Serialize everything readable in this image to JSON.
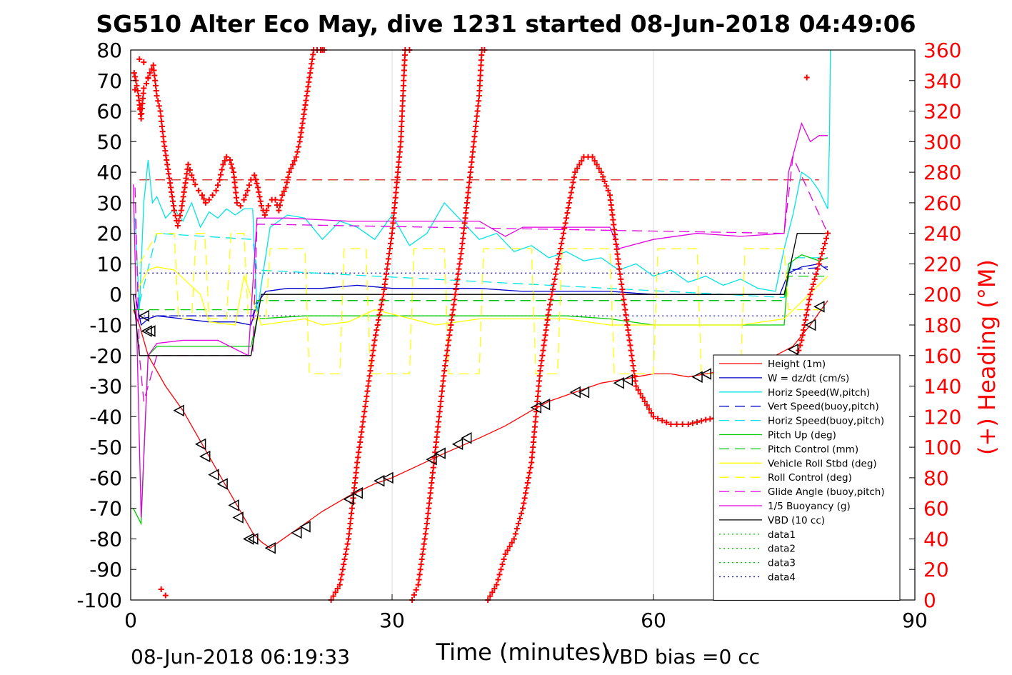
{
  "chart_data": {
    "type": "line",
    "title": "SG510 Alter Eco May, dive 1231 started 08-Jun-2018 04:49:06",
    "xlabel": "Time (minutes)",
    "ylabel_right": "(+) Heading (°M)",
    "footer_left": "08-Jun-2018 06:19:33",
    "footer_right": "VBD bias =0 cc",
    "xlim": [
      0,
      90
    ],
    "ylim": [
      -100,
      80
    ],
    "ylim_right": [
      0,
      360
    ],
    "xticks": [
      "0",
      "30",
      "60",
      "90"
    ],
    "yticks": [
      "80",
      "70",
      "60",
      "50",
      "40",
      "30",
      "20",
      "10",
      "0",
      "-10",
      "-20",
      "-30",
      "-40",
      "-50",
      "-60",
      "-70",
      "-80",
      "-90",
      "-100"
    ],
    "yticks_right": [
      "360",
      "340",
      "320",
      "300",
      "280",
      "260",
      "240",
      "220",
      "200",
      "180",
      "160",
      "140",
      "120",
      "100",
      "80",
      "60",
      "40",
      "20",
      "0"
    ],
    "grid": true,
    "legend_position": "lower-right",
    "colors": {
      "height": "#ff0000",
      "w": "#0000cc",
      "horiz": "#00e5e5",
      "vert_buoy": "#0000cc",
      "horiz_buoy": "#00e5e5",
      "pitch": "#00cc00",
      "pitch_ctrl": "#00cc00",
      "roll": "#ffff00",
      "roll_ctrl": "#ffff00",
      "glide": "#e000e0",
      "buoy": "#e000e0",
      "vbd": "#000000",
      "heading": "#ff0000",
      "data4": "#0000cc"
    },
    "series": [
      {
        "name": "Height (1m)",
        "key": "height",
        "style": "solid",
        "x": [
          0.3,
          1,
          2,
          4,
          6,
          8,
          10,
          12,
          14,
          15,
          16,
          18,
          20,
          22,
          25,
          28,
          30,
          33,
          36,
          40,
          43,
          46,
          48,
          50,
          52,
          54,
          56,
          58,
          60,
          62,
          64,
          66,
          68,
          70,
          72,
          74,
          76,
          78,
          79,
          80
        ],
        "y": [
          -5,
          -10,
          -20,
          -30,
          -38,
          -48,
          -58,
          -68,
          -78,
          -81,
          -83,
          -79,
          -75,
          -71,
          -66,
          -62,
          -60,
          -56,
          -52,
          -47,
          -43,
          -38,
          -35,
          -33,
          -31,
          -29,
          -28,
          -27,
          -26,
          -26,
          -27,
          -26,
          -25,
          -24,
          -22,
          -20,
          -17,
          -10,
          -6,
          -2
        ]
      },
      {
        "name": "W = dz/dt (cm/s)",
        "key": "w",
        "style": "solid",
        "x": [
          0.5,
          1.2,
          2,
          3,
          6,
          9,
          12,
          13.8,
          14.5,
          15.5,
          18,
          22,
          26,
          30,
          35,
          40,
          45,
          50,
          55,
          60,
          65,
          70,
          74.5,
          75.5,
          77,
          79,
          80
        ],
        "y": [
          0,
          -10,
          -8,
          -7,
          -8,
          -9,
          -9,
          -10,
          -3,
          1,
          2,
          2,
          3,
          2,
          2,
          2,
          1,
          1,
          1,
          0,
          0,
          0,
          0,
          7,
          9,
          10,
          8
        ]
      },
      {
        "name": "Horiz Speed(W,pitch)",
        "key": "horiz",
        "style": "solid",
        "x": [
          0.5,
          1,
          1.5,
          2,
          2.5,
          3,
          4,
          5,
          6,
          7,
          8,
          9,
          10,
          11,
          12,
          13,
          14,
          14.5,
          16,
          18,
          20,
          22,
          24,
          26,
          28,
          30,
          32,
          34,
          36,
          38,
          40,
          42,
          44,
          46,
          48,
          50,
          52,
          54,
          56,
          58,
          60,
          62,
          64,
          66,
          68,
          70,
          72,
          74,
          75,
          76,
          77,
          78,
          79,
          80,
          80.2,
          80.3
        ],
        "y": [
          25,
          -5,
          30,
          44,
          30,
          32,
          25,
          28,
          24,
          30,
          22,
          27,
          25,
          28,
          26,
          28,
          28,
          -6,
          22,
          26,
          25,
          18,
          24,
          22,
          18,
          26,
          16,
          20,
          30,
          24,
          18,
          20,
          14,
          16,
          12,
          14,
          11,
          12,
          8,
          10,
          6,
          8,
          4,
          6,
          3,
          5,
          2,
          1,
          15,
          26,
          40,
          38,
          34,
          28,
          50,
          80
        ]
      },
      {
        "name": "Vert Speed(buoy,pitch)",
        "key": "vert_buoy",
        "style": "dash",
        "x": [
          1,
          3,
          14,
          14.5,
          75,
          75.5,
          80
        ],
        "y": [
          -8,
          -7,
          -7,
          -2,
          -2,
          8,
          9
        ]
      },
      {
        "name": "Horiz Speed(buoy,pitch)",
        "key": "horiz_buoy",
        "style": "dash",
        "x": [
          1,
          3,
          14,
          14.5,
          75,
          76,
          80
        ],
        "y": [
          -3,
          20,
          18,
          8,
          -1,
          12,
          12
        ]
      },
      {
        "name": "Pitch Up (deg)",
        "key": "pitch",
        "style": "solid",
        "x": [
          0.3,
          1.2,
          2,
          3,
          6,
          10,
          13.8,
          14.5,
          20,
          30,
          40,
          50,
          55,
          60,
          70,
          75,
          75.5,
          77,
          79,
          80
        ],
        "y": [
          -70,
          -75,
          -20,
          -17,
          -17,
          -17,
          -17,
          -8,
          -7,
          -7,
          -7,
          -7,
          -8,
          -10,
          -10,
          -10,
          10,
          13,
          11,
          12
        ]
      },
      {
        "name": "Pitch Control (mm)",
        "key": "pitch_ctrl",
        "style": "dash",
        "x": [
          0.3,
          14,
          14.5,
          75,
          75.5,
          80
        ],
        "y": [
          -5,
          -5,
          -2,
          -2,
          6,
          6
        ]
      },
      {
        "name": "Vehicle Roll Stbd (deg)",
        "key": "roll",
        "style": "solid",
        "x": [
          0.5,
          2,
          3,
          5,
          8,
          9,
          12,
          13,
          15,
          20,
          22,
          25,
          28,
          35,
          40,
          45,
          50,
          55,
          60,
          70,
          75,
          80
        ],
        "y": [
          0,
          8,
          9,
          8,
          0,
          -9,
          -10,
          6,
          -10,
          -8,
          -10,
          -9,
          -5,
          -10,
          -8,
          -8,
          -8,
          -10,
          -10,
          -10,
          -8,
          6
        ]
      },
      {
        "name": "Roll Control (deg)",
        "key": "roll_ctrl",
        "style": "dash",
        "x": [
          1,
          3,
          5,
          5.5,
          7,
          7.5,
          8.5,
          9,
          11,
          11.5,
          13,
          13.5,
          15.5,
          16,
          20,
          20.5,
          24,
          24.5,
          27,
          27.5,
          32,
          32.5,
          36,
          36.5,
          40,
          40.5,
          46,
          46.5,
          49,
          49.5,
          55,
          55.5,
          60,
          60.5,
          65,
          65.5,
          70,
          70.5,
          75,
          75.5,
          80
        ],
        "y": [
          10,
          20,
          20,
          -8,
          -8,
          20,
          20,
          -8,
          -8,
          20,
          20,
          -8,
          -8,
          15,
          15,
          -26,
          -26,
          15,
          15,
          -26,
          -26,
          15,
          15,
          -26,
          -26,
          15,
          15,
          -26,
          -26,
          15,
          15,
          -26,
          -26,
          15,
          15,
          -26,
          -26,
          15,
          15,
          -5,
          -5
        ]
      },
      {
        "name": "Glide Angle (buoy,pitch)",
        "key": "glide",
        "style": "dash",
        "x": [
          0.5,
          1,
          1.5,
          3,
          14,
          14.5,
          75,
          76,
          80
        ],
        "y": [
          35,
          -20,
          -35,
          -20,
          -20,
          23,
          20,
          45,
          20
        ]
      },
      {
        "name": "1/5 Buoyancy (g)",
        "key": "buoy",
        "style": "solid",
        "x": [
          0.3,
          1.2,
          2,
          3,
          6,
          10,
          13.5,
          14.5,
          18,
          25,
          30,
          40,
          43,
          45,
          50,
          55,
          56,
          60,
          65,
          70,
          75,
          75.5,
          77,
          78,
          79,
          80
        ],
        "y": [
          36,
          -73,
          -20,
          -16,
          -15,
          -15,
          -20,
          25,
          25,
          24,
          24,
          24,
          19,
          22,
          22,
          22,
          15,
          18,
          20,
          19,
          20,
          40,
          56,
          50,
          52,
          52
        ]
      },
      {
        "name": "VBD (10 cc)",
        "key": "vbd",
        "style": "solid",
        "x": [
          0.3,
          1,
          2,
          13.8,
          15,
          75,
          76.5,
          80
        ],
        "y": [
          0,
          -20,
          -20,
          -20,
          0,
          0,
          20,
          20
        ]
      },
      {
        "name": "data1",
        "key": "data1",
        "style": "dot",
        "x": [],
        "y": []
      },
      {
        "name": "data2",
        "key": "data2",
        "style": "dot",
        "x": [],
        "y": []
      },
      {
        "name": "data3",
        "key": "data3",
        "style": "dot",
        "x": [],
        "y": []
      },
      {
        "name": "data4",
        "key": "data4",
        "style": "dot",
        "x": [],
        "y": []
      }
    ],
    "reference_lines": [
      {
        "axis": "y",
        "value": 37.5,
        "color": "#cc0000",
        "style": "dash",
        "xrange": [
          1,
          79
        ]
      },
      {
        "axis": "y",
        "value": 7,
        "color": "#0000cc",
        "style": "dot",
        "xrange": [
          1,
          79
        ]
      },
      {
        "axis": "y",
        "value": -7,
        "color": "#0000cc",
        "style": "dot",
        "xrange": [
          1,
          79
        ]
      }
    ],
    "markers_triangle": {
      "x": [
        1.5,
        1.8,
        2.2,
        5.5,
        8,
        8.5,
        9.5,
        10.5,
        11.8,
        12.3,
        13.5,
        14,
        16,
        19,
        20,
        25,
        26,
        28.5,
        29.5,
        34.5,
        35.5,
        37.5,
        38.5,
        46.5,
        47.5,
        51,
        52,
        56,
        57,
        65,
        66,
        76,
        78,
        79
      ],
      "y": [
        -7,
        -12,
        -12,
        -38,
        -49,
        -53,
        -59,
        -62,
        -69,
        -73,
        -80,
        -80,
        -83,
        -78,
        -76,
        -67,
        -65,
        -61,
        -60,
        -54,
        -52,
        -49,
        -47,
        -37,
        -36,
        -32,
        -32,
        -29,
        -28,
        -27,
        -26,
        -18,
        -10,
        -4
      ]
    },
    "heading": {
      "name": "(+) Heading (°M)",
      "x": [
        0.4,
        0.6,
        0.9,
        1.2,
        1.5,
        1.8,
        2.2,
        2.6,
        3,
        3.4,
        3.8,
        4.2,
        4.6,
        5,
        5.4,
        5.8,
        6.2,
        6.6,
        7,
        7.4,
        7.8,
        8.2,
        8.6,
        9,
        9.4,
        9.8,
        10.2,
        10.6,
        11,
        11.4,
        11.8,
        12.2,
        12.6,
        13,
        13.4,
        13.8,
        14.2,
        14.6,
        15,
        15.4,
        15.8,
        16.2,
        16.6,
        17,
        17.4,
        17.8,
        18.2,
        18.6,
        19,
        19.4,
        19.8,
        20.2,
        20.6,
        21,
        21.4,
        21.8,
        22,
        22.2,
        23,
        24,
        25,
        26,
        27,
        28,
        29,
        30,
        31,
        31.5,
        32,
        32.3,
        33,
        34,
        35,
        36,
        37,
        38,
        39,
        40,
        40.3,
        40.6,
        41,
        42,
        43,
        44,
        45,
        46,
        47,
        48,
        49,
        50,
        51,
        52,
        53,
        54,
        55,
        56,
        57,
        58,
        59,
        60,
        62,
        64,
        66,
        68,
        70,
        72,
        74,
        76,
        77,
        78,
        79,
        80
      ],
      "y": [
        345,
        340,
        330,
        315,
        335,
        338,
        345,
        350,
        330,
        320,
        300,
        285,
        270,
        255,
        245,
        255,
        270,
        285,
        278,
        272,
        268,
        265,
        260,
        262,
        265,
        268,
        275,
        285,
        290,
        288,
        280,
        260,
        258,
        262,
        268,
        275,
        278,
        270,
        258,
        252,
        258,
        262,
        262,
        255,
        265,
        270,
        280,
        285,
        290,
        300,
        315,
        330,
        345,
        360,
        360,
        360,
        360,
        360,
        0,
        10,
        40,
        90,
        130,
        170,
        200,
        240,
        300,
        360,
        360,
        0,
        10,
        50,
        100,
        150,
        190,
        230,
        280,
        330,
        360,
        360,
        0,
        10,
        30,
        40,
        60,
        90,
        150,
        190,
        220,
        250,
        280,
        290,
        290,
        280,
        265,
        220,
        180,
        140,
        130,
        120,
        115,
        115,
        118,
        120,
        122,
        125,
        130,
        150,
        170,
        200,
        220,
        240
      ],
      "extra_scatter": [
        [
          1,
          354
        ],
        [
          1.5,
          352
        ],
        [
          0.5,
          334
        ],
        [
          2,
          342
        ],
        [
          1.1,
          322
        ],
        [
          3.5,
          7
        ],
        [
          4,
          3
        ],
        [
          77,
          10
        ],
        [
          77.6,
          342
        ]
      ]
    }
  }
}
